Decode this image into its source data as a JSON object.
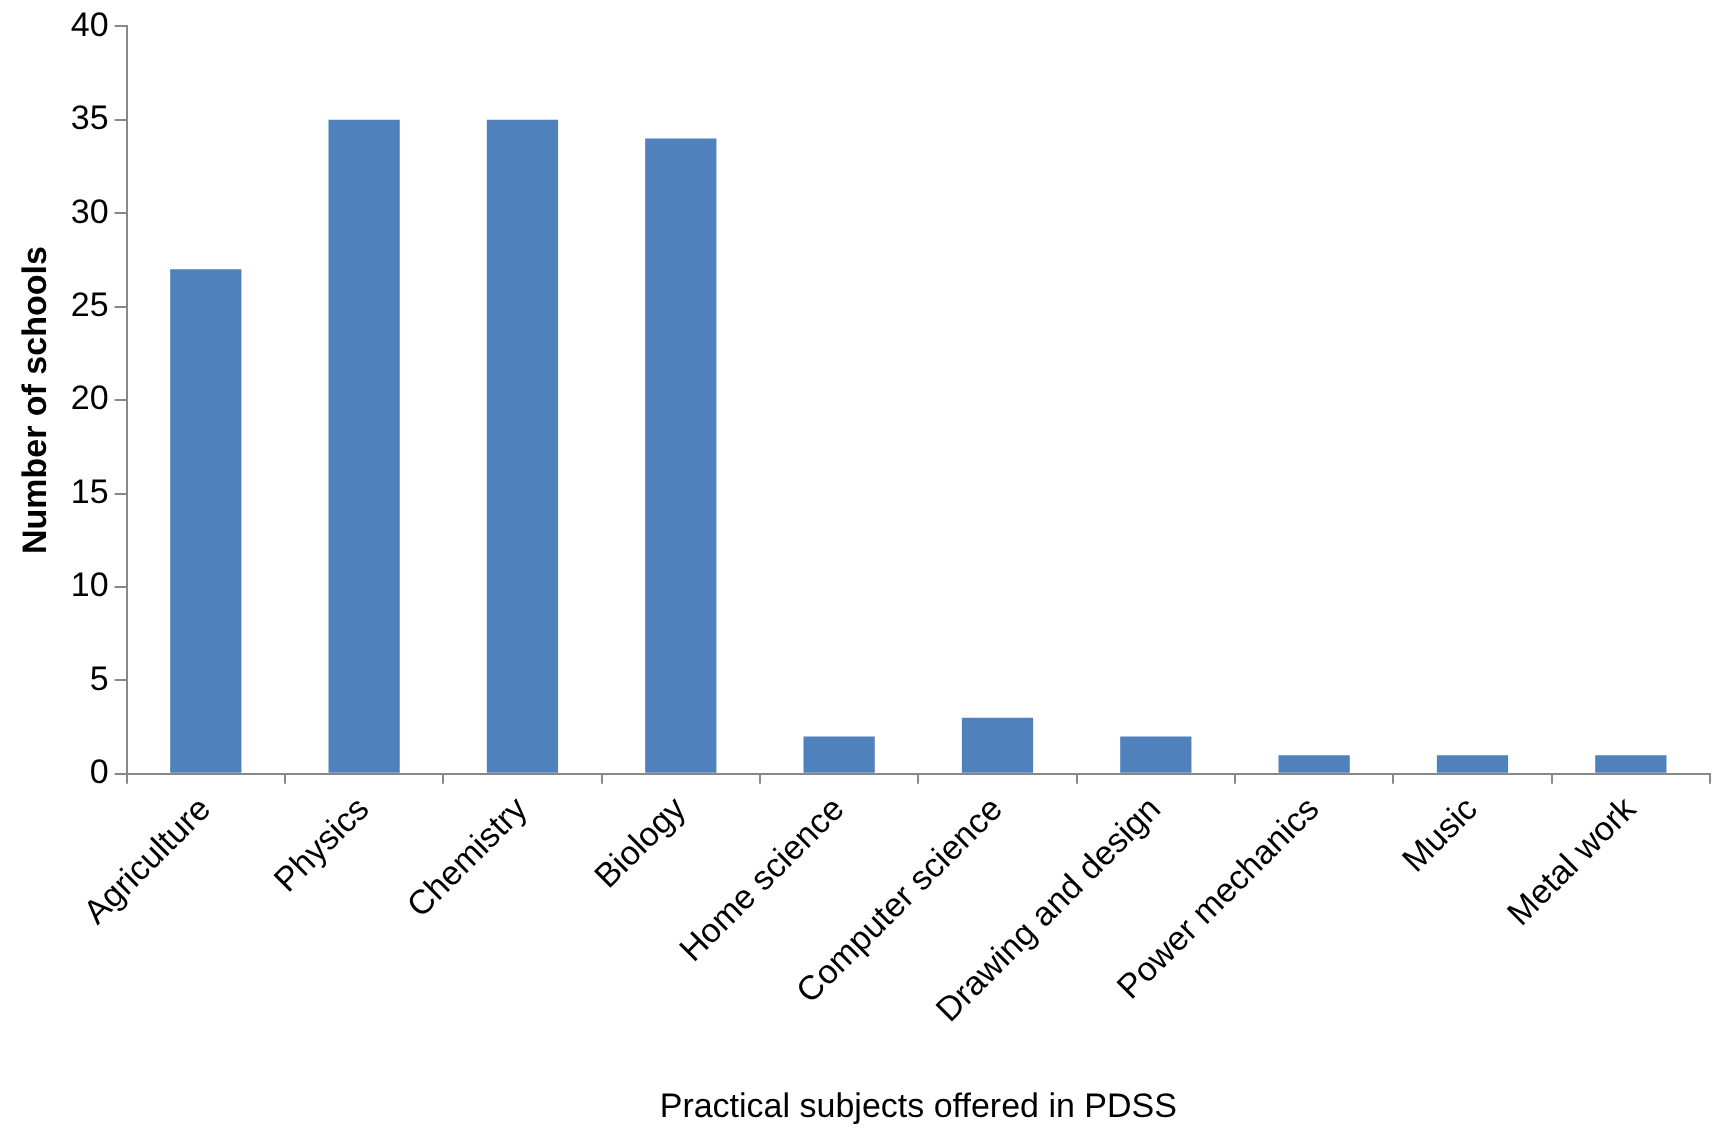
{
  "chart_data": {
    "type": "bar",
    "xlabel": "Practical subjects offered in PDSS",
    "ylabel": "Number of schools",
    "categories": [
      "Agriculture",
      "Physics",
      "Chemistry",
      "Biology",
      "Home science",
      "Computer science",
      "Drawing and design",
      "Power mechanics",
      "Music",
      "Metal work"
    ],
    "values": [
      27,
      35,
      35,
      34,
      2,
      3,
      2,
      1,
      1,
      1
    ],
    "color": "#4f81bd",
    "ylim": [
      0,
      40
    ],
    "yticks": [
      0,
      5,
      10,
      15,
      20,
      25,
      30,
      35,
      40
    ],
    "grid": false,
    "legend": false
  }
}
